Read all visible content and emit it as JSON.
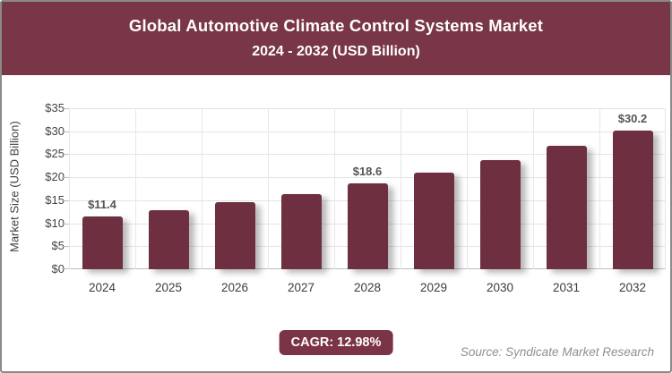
{
  "banner": {
    "line1": "Global Automotive Climate Control Systems Market",
    "line2": "2024 - 2032 (USD Billion)"
  },
  "chart_data": {
    "type": "bar",
    "title": "Global Automotive Climate Control Systems Market",
    "subtitle": "2024 - 2032 (USD Billion)",
    "categories": [
      "2024",
      "2025",
      "2026",
      "2027",
      "2028",
      "2029",
      "2030",
      "2031",
      "2032"
    ],
    "values": [
      11.4,
      12.9,
      14.5,
      16.4,
      18.6,
      21.0,
      23.7,
      26.8,
      30.2
    ],
    "point_labels": [
      "$11.4",
      "",
      "",
      "",
      "$18.6",
      "",
      "",
      "",
      "$30.2"
    ],
    "xlabel": "",
    "ylabel": "Market Size (USD Billion)",
    "ylim": [
      0,
      35
    ],
    "ytick_interval": 5,
    "ytick_labels": [
      "$0",
      "$5",
      "$10",
      "$15",
      "$20",
      "$25",
      "$30",
      "$35"
    ],
    "grid": true,
    "legend": "none",
    "bar_color": "#6e2f41"
  },
  "footer": {
    "cagr_badge": "CAGR: 12.98%",
    "source": "Source: Syndicate Market Research"
  },
  "colors": {
    "banner_bg": "#783646",
    "badge_bg": "#7b3445",
    "bar": "#6e2f41",
    "frame_border": "#8a8a8a",
    "gridline": "#e4e4e4",
    "baseline": "#bdbdbd",
    "axis_text": "#3c3c3c",
    "point_label_text": "#555555",
    "source_text": "#8b9196"
  }
}
